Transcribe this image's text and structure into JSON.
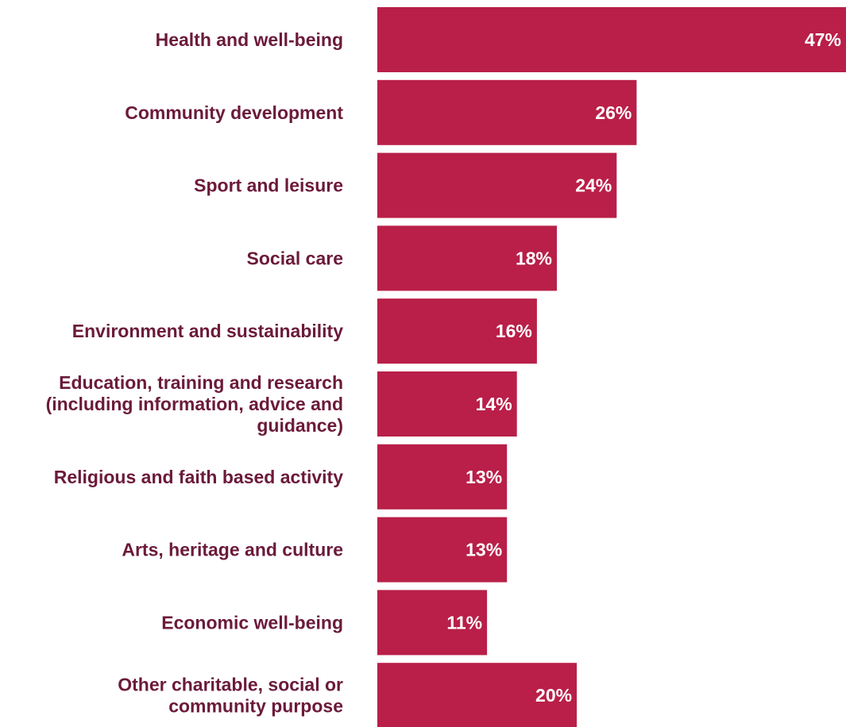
{
  "chart_data": {
    "type": "bar",
    "orientation": "horizontal",
    "categories": [
      [
        "Health and well-being"
      ],
      [
        "Community development"
      ],
      [
        "Sport and leisure"
      ],
      [
        "Social care"
      ],
      [
        "Environment and sustainability"
      ],
      [
        "Education, training and research",
        "(including information, advice and",
        "guidance)"
      ],
      [
        "Religious and faith based activity"
      ],
      [
        "Arts, heritage and culture"
      ],
      [
        "Economic well-being"
      ],
      [
        "Other charitable, social or",
        "community purpose"
      ]
    ],
    "values": [
      47,
      26,
      24,
      18,
      16,
      14,
      13,
      13,
      11,
      20
    ],
    "value_labels": [
      "47%",
      "26%",
      "24%",
      "18%",
      "16%",
      "14%",
      "13%",
      "13%",
      "11%",
      "20%"
    ],
    "unit": "%",
    "xlim": [
      0,
      47
    ],
    "grid": false,
    "legend": "none",
    "colors": {
      "bar": "#b91f48",
      "category_text": "#6b1a3a",
      "value_text": "#ffffff"
    }
  }
}
